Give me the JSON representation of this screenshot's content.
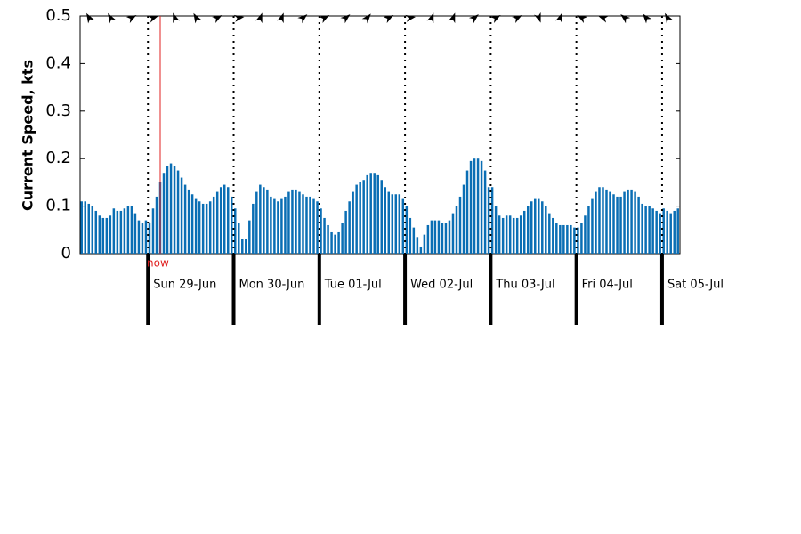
{
  "chart_data": {
    "type": "bar",
    "y_label": "Current Speed, kts",
    "annotation": "now",
    "color": "#0a6eb4",
    "ylim": [
      0,
      0.5
    ],
    "yticks": [
      0,
      0.1,
      0.2,
      0.3,
      0.4,
      0.5
    ],
    "categories": [
      null,
      null,
      null,
      null,
      null,
      null,
      null,
      null,
      null,
      null,
      null,
      null,
      null,
      null,
      null,
      null,
      null,
      null,
      null,
      "Sun 29-Jun",
      null,
      null,
      null,
      null,
      null,
      null,
      null,
      null,
      null,
      null,
      null,
      null,
      null,
      null,
      null,
      null,
      null,
      null,
      null,
      null,
      null,
      null,
      null,
      "Mon 30-Jun",
      null,
      null,
      null,
      null,
      null,
      null,
      null,
      null,
      null,
      null,
      null,
      null,
      null,
      null,
      null,
      null,
      null,
      null,
      null,
      null,
      null,
      null,
      null,
      "Tue 01-Jul",
      null,
      null,
      null,
      null,
      null,
      null,
      null,
      null,
      null,
      null,
      null,
      null,
      null,
      null,
      null,
      null,
      null,
      null,
      null,
      null,
      null,
      null,
      null,
      "Wed 02-Jul",
      null,
      null,
      null,
      null,
      null,
      null,
      null,
      null,
      null,
      null,
      null,
      null,
      null,
      null,
      null,
      null,
      null,
      null,
      null,
      null,
      null,
      null,
      null,
      "Thu 03-Jul",
      null,
      null,
      null,
      null,
      null,
      null,
      null,
      null,
      null,
      null,
      null,
      null,
      null,
      null,
      null,
      null,
      null,
      null,
      null,
      null,
      null,
      null,
      null,
      "Fri 04-Jul",
      null,
      null,
      null,
      null,
      null,
      null,
      null,
      null,
      null,
      null,
      null,
      null,
      null,
      null,
      null,
      null,
      null,
      null,
      null,
      null,
      null,
      null,
      null,
      "Sat 05-Jul",
      null,
      null,
      null,
      null
    ],
    "values": [
      0.11,
      0.11,
      0.105,
      0.1,
      0.09,
      0.08,
      0.075,
      0.075,
      0.08,
      0.095,
      0.09,
      0.09,
      0.095,
      0.1,
      0.1,
      0.085,
      0.07,
      0.065,
      0.07,
      0.065,
      0.095,
      0.12,
      0.15,
      0.17,
      0.185,
      0.19,
      0.185,
      0.175,
      0.16,
      0.145,
      0.135,
      0.125,
      0.115,
      0.11,
      0.105,
      0.105,
      0.11,
      0.12,
      0.13,
      0.14,
      0.145,
      0.14,
      0.12,
      0.095,
      0.065,
      0.03,
      0.03,
      0.07,
      0.105,
      0.13,
      0.145,
      0.14,
      0.135,
      0.12,
      0.115,
      0.11,
      0.115,
      0.12,
      0.13,
      0.135,
      0.135,
      0.13,
      0.125,
      0.12,
      0.12,
      0.115,
      0.11,
      0.095,
      0.075,
      0.06,
      0.045,
      0.04,
      0.045,
      0.065,
      0.09,
      0.11,
      0.13,
      0.145,
      0.15,
      0.155,
      0.165,
      0.17,
      0.17,
      0.165,
      0.155,
      0.14,
      0.13,
      0.125,
      0.125,
      0.125,
      0.115,
      0.1,
      0.075,
      0.055,
      0.035,
      0.015,
      0.04,
      0.06,
      0.07,
      0.07,
      0.07,
      0.065,
      0.065,
      0.07,
      0.085,
      0.1,
      0.12,
      0.145,
      0.175,
      0.195,
      0.2,
      0.2,
      0.195,
      0.175,
      0.14,
      0.14,
      0.1,
      0.08,
      0.075,
      0.08,
      0.08,
      0.075,
      0.075,
      0.08,
      0.09,
      0.1,
      0.11,
      0.115,
      0.115,
      0.11,
      0.1,
      0.085,
      0.075,
      0.065,
      0.06,
      0.06,
      0.06,
      0.06,
      0.055,
      0.055,
      0.065,
      0.08,
      0.1,
      0.115,
      0.13,
      0.14,
      0.14,
      0.135,
      0.13,
      0.125,
      0.12,
      0.12,
      0.13,
      0.135,
      0.135,
      0.13,
      0.12,
      0.105,
      0.1,
      0.1,
      0.095,
      0.09,
      0.085,
      0.095,
      0.09,
      0.085,
      0.09,
      0.095
    ],
    "directions": [
      330,
      330,
      60,
      70,
      340,
      330,
      60,
      80,
      20,
      20,
      50,
      60,
      50,
      40,
      60,
      80,
      20,
      20,
      50,
      60,
      60,
      160,
      20,
      300,
      290,
      310,
      320,
      330
    ]
  }
}
